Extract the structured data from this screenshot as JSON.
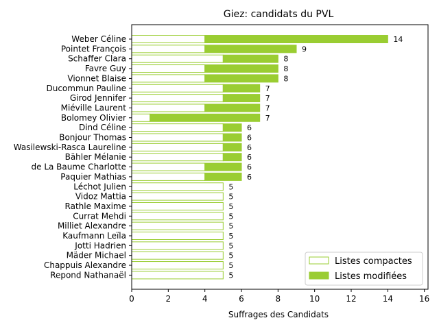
{
  "chart_data": {
    "type": "bar",
    "orientation": "horizontal",
    "stacked": true,
    "title": "Giez: candidats du PVL",
    "xlabel": "Suffrages des Candidats",
    "ylabel": "",
    "xlim": [
      0,
      16.2
    ],
    "xticks": [
      0,
      2,
      4,
      6,
      8,
      10,
      12,
      14,
      16
    ],
    "grid": false,
    "legend_position": "lower-right",
    "colors": {
      "compact_edge": "#9acd32",
      "compact_fill": "#ffffff",
      "modified": "#9acd32"
    },
    "categories": [
      "Weber Céline",
      "Pointet François",
      "Schaffer Clara",
      "Favre Guy",
      "Vionnet Blaise",
      "Ducommun Pauline",
      "Girod Jennifer",
      "Miéville Laurent",
      "Bolomey Olivier",
      "Dind Céline",
      "Bonjour Thomas",
      "Wasilewski-Rasca Laureline",
      "Bähler Mélanie",
      "de La Baume Charlotte",
      "Paquier Mathias",
      "Léchot Julien",
      "Vidoz Mattia",
      "Rathle Maxime",
      "Currat Mehdi",
      "Milliet Alexandre",
      "Kaufmann Leïla",
      "Jotti Hadrien",
      "Mäder Michael",
      "Chappuis Alexandre",
      "Repond Nathanaël"
    ],
    "series": [
      {
        "name": "Listes compactes",
        "values": [
          4,
          4,
          5,
          4,
          4,
          5,
          5,
          4,
          1,
          5,
          5,
          5,
          5,
          4,
          4,
          5,
          5,
          5,
          5,
          5,
          5,
          5,
          5,
          5,
          5
        ]
      },
      {
        "name": "Listes modifiées",
        "values": [
          10,
          5,
          3,
          4,
          4,
          2,
          2,
          3,
          6,
          1,
          1,
          1,
          1,
          2,
          2,
          0,
          0,
          0,
          0,
          0,
          0,
          0,
          0,
          0,
          0
        ]
      }
    ],
    "totals": [
      "14",
      "9",
      "8",
      "8",
      "8",
      "7",
      "7",
      "7",
      "7",
      "6",
      "6",
      "6",
      "6",
      "6",
      "6",
      "5",
      "5",
      "5",
      "5",
      "5",
      "5",
      "5",
      "5",
      "5",
      "5"
    ]
  }
}
